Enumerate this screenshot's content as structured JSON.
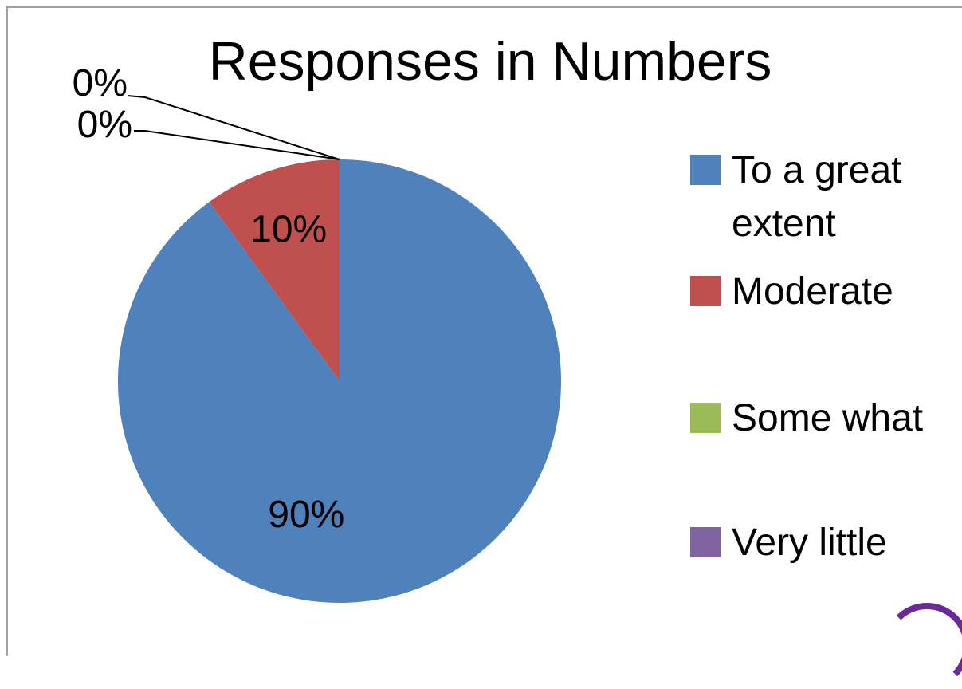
{
  "chart_data": {
    "type": "pie",
    "title": "Responses in Numbers",
    "categories": [
      "To a great extent",
      "Moderate",
      "Some what",
      "Very little"
    ],
    "values": [
      90,
      10,
      0,
      0
    ],
    "data_labels": [
      "90%",
      "10%",
      "0%",
      "0%"
    ],
    "colors": [
      "#4f81bd",
      "#c0504d",
      "#9bbb59",
      "#8064a2"
    ],
    "legend": {
      "placement": "right",
      "items": [
        {
          "label_lines": [
            "To a great",
            "extent"
          ],
          "color": "#4f81bd"
        },
        {
          "label_lines": [
            "Moderate"
          ],
          "color": "#c0504d"
        },
        {
          "label_lines": [
            "Some what"
          ],
          "color": "#9bbb59"
        },
        {
          "label_lines": [
            "Very little"
          ],
          "color": "#8064a2"
        }
      ]
    }
  }
}
